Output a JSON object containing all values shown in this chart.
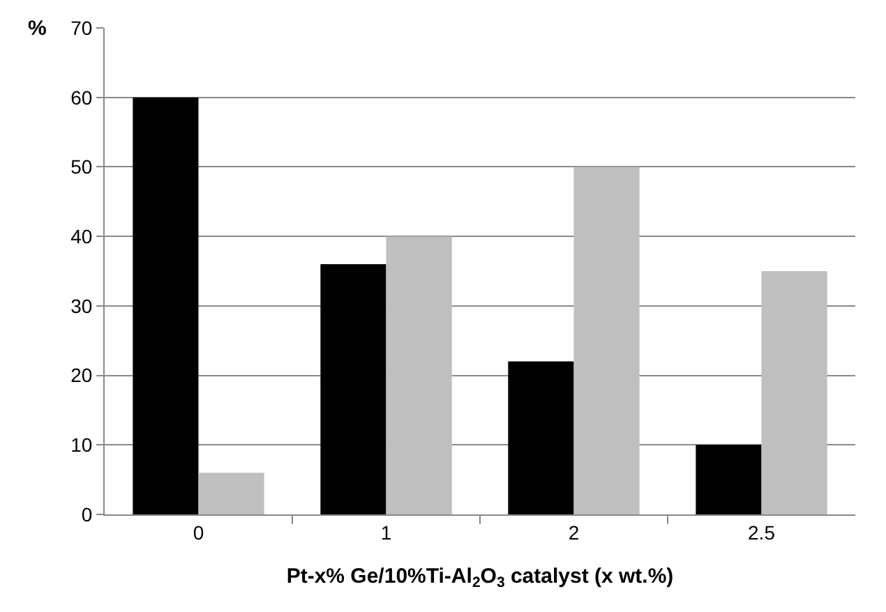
{
  "chart_data": {
    "type": "bar",
    "xlabel": "Pt-x% Ge/10%Ti-Al$_{2}$O$_{3}$ catalyst (x wt.%)",
    "ylabel": "%",
    "categories": [
      "0",
      "1",
      "2",
      "2.5"
    ],
    "series": [
      {
        "color": "#000000",
        "values": [
          60,
          36,
          22,
          10
        ]
      },
      {
        "color": "#bfbfbf",
        "values": [
          6,
          40,
          50,
          35
        ]
      }
    ],
    "ylim": [
      0,
      70
    ],
    "yticks": [
      0,
      10,
      20,
      30,
      40,
      50,
      60,
      70
    ],
    "grid": "y"
  }
}
